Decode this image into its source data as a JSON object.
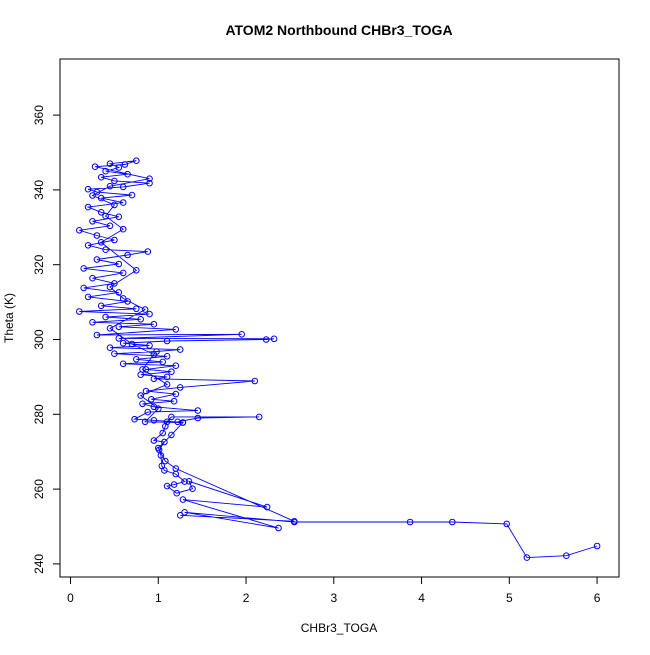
{
  "chart_data": {
    "type": "scatter",
    "title": "ATOM2 Northbound CHBr3_TOGA",
    "xlabel": "CHBr3_TOGA",
    "ylabel": "Theta (K)",
    "xlim": [
      -0.12,
      6.25
    ],
    "ylim": [
      236.5,
      375
    ],
    "xticks": [
      0,
      1,
      2,
      3,
      4,
      5,
      6
    ],
    "yticks": [
      240,
      260,
      280,
      300,
      320,
      340,
      360
    ],
    "grid": false,
    "legend": "none",
    "color": "#0000ff",
    "series": [
      {
        "values_note": "",
        "points": [
          [
            6.0,
            244.8
          ],
          [
            5.65,
            242.2
          ],
          [
            5.2,
            241.7
          ],
          [
            4.97,
            250.7
          ],
          [
            4.35,
            251.2
          ],
          [
            3.87,
            251.2
          ],
          [
            2.55,
            251.2
          ],
          [
            1.3,
            253.8
          ],
          [
            2.37,
            249.6
          ],
          [
            1.28,
            257.2
          ],
          [
            2.24,
            255.2
          ],
          [
            1.35,
            262.1
          ],
          [
            1.39,
            260.1
          ],
          [
            1.21,
            258.9
          ],
          [
            1.1,
            260.8
          ],
          [
            1.18,
            261.2
          ],
          [
            1.3,
            262.0
          ],
          [
            1.2,
            264.0
          ],
          [
            1.07,
            265.0
          ],
          [
            1.04,
            266.2
          ],
          [
            1.03,
            269.0
          ],
          [
            1.01,
            270.5
          ],
          [
            1.07,
            272.6
          ],
          [
            0.95,
            273.0
          ],
          [
            1.05,
            275.0
          ],
          [
            1.08,
            276.8
          ],
          [
            1.1,
            278.0
          ],
          [
            1.15,
            279.3
          ],
          [
            2.15,
            279.3
          ],
          [
            1.45,
            279.0
          ],
          [
            1.22,
            278.0
          ],
          [
            1.28,
            277.8
          ],
          [
            0.95,
            278.4
          ],
          [
            0.73,
            278.7
          ],
          [
            0.88,
            280.6
          ],
          [
            1.45,
            281.0
          ],
          [
            0.95,
            282.0
          ],
          [
            0.82,
            282.8
          ],
          [
            1.18,
            283.5
          ],
          [
            0.92,
            284.0
          ],
          [
            1.2,
            285.4
          ],
          [
            0.86,
            286.2
          ],
          [
            1.25,
            287.2
          ],
          [
            2.1,
            288.9
          ],
          [
            0.95,
            289.5
          ],
          [
            1.1,
            290.0
          ],
          [
            0.8,
            290.6
          ],
          [
            1.15,
            291.4
          ],
          [
            0.86,
            292.0
          ],
          [
            1.2,
            293.0
          ],
          [
            0.6,
            293.5
          ],
          [
            1.05,
            294.0
          ],
          [
            0.75,
            294.7
          ],
          [
            1.1,
            295.5
          ],
          [
            0.5,
            296.2
          ],
          [
            0.98,
            296.8
          ],
          [
            1.25,
            297.3
          ],
          [
            0.45,
            297.8
          ],
          [
            0.9,
            298.4
          ],
          [
            0.6,
            299.0
          ],
          [
            1.1,
            299.6
          ],
          [
            2.23,
            300.0
          ],
          [
            2.32,
            300.2
          ],
          [
            0.55,
            300.3
          ],
          [
            1.95,
            301.4
          ],
          [
            0.3,
            301.2
          ],
          [
            1.2,
            302.7
          ],
          [
            0.55,
            303.4
          ],
          [
            0.95,
            304.1
          ],
          [
            0.25,
            304.6
          ],
          [
            0.8,
            305.4
          ],
          [
            0.4,
            306.0
          ],
          [
            0.9,
            306.8
          ],
          [
            0.1,
            307.5
          ],
          [
            0.75,
            308.2
          ],
          [
            0.35,
            309.0
          ],
          [
            0.65,
            310.2
          ],
          [
            0.2,
            311.4
          ],
          [
            0.55,
            312.6
          ],
          [
            0.15,
            313.8
          ],
          [
            0.5,
            315.0
          ],
          [
            0.25,
            316.4
          ],
          [
            0.6,
            317.8
          ],
          [
            0.15,
            319.0
          ],
          [
            0.55,
            320.2
          ],
          [
            0.3,
            321.4
          ],
          [
            0.65,
            322.6
          ],
          [
            0.88,
            323.5
          ],
          [
            0.4,
            324.0
          ],
          [
            0.2,
            325.2
          ],
          [
            0.5,
            326.6
          ],
          [
            0.3,
            327.8
          ],
          [
            0.1,
            329.2
          ],
          [
            0.45,
            330.4
          ],
          [
            0.25,
            331.6
          ],
          [
            0.55,
            332.8
          ],
          [
            0.35,
            334.0
          ],
          [
            0.2,
            335.4
          ],
          [
            0.6,
            336.6
          ],
          [
            0.35,
            337.8
          ],
          [
            0.7,
            338.6
          ],
          [
            0.3,
            339.4
          ],
          [
            0.2,
            340.2
          ],
          [
            0.6,
            340.8
          ],
          [
            0.9,
            341.8
          ],
          [
            0.5,
            342.4
          ],
          [
            0.35,
            343.4
          ],
          [
            0.65,
            344.2
          ],
          [
            0.4,
            345.0
          ],
          [
            0.55,
            346.0
          ],
          [
            0.45,
            347.0
          ],
          [
            0.75,
            347.8
          ],
          [
            0.62,
            346.8
          ],
          [
            0.28,
            346.2
          ],
          [
            0.9,
            343.0
          ],
          [
            0.45,
            341.0
          ],
          [
            0.25,
            338.5
          ],
          [
            0.5,
            336.0
          ],
          [
            0.4,
            333.0
          ],
          [
            0.6,
            329.5
          ],
          [
            0.35,
            326.0
          ],
          [
            0.75,
            318.5
          ],
          [
            0.45,
            314.0
          ],
          [
            0.6,
            311.0
          ],
          [
            0.85,
            308.0
          ],
          [
            0.45,
            303.0
          ],
          [
            0.7,
            298.8
          ],
          [
            0.95,
            296.0
          ],
          [
            0.82,
            292.0
          ],
          [
            1.1,
            288.0
          ],
          [
            0.8,
            285.0
          ],
          [
            1.0,
            281.5
          ],
          [
            0.85,
            278.0
          ],
          [
            1.28,
            277.8
          ],
          [
            1.15,
            274.5
          ],
          [
            1.0,
            271.0
          ],
          [
            1.08,
            267.5
          ],
          [
            1.2,
            265.5
          ],
          [
            2.55,
            251.4
          ],
          [
            1.25,
            253.0
          ]
        ]
      }
    ]
  }
}
